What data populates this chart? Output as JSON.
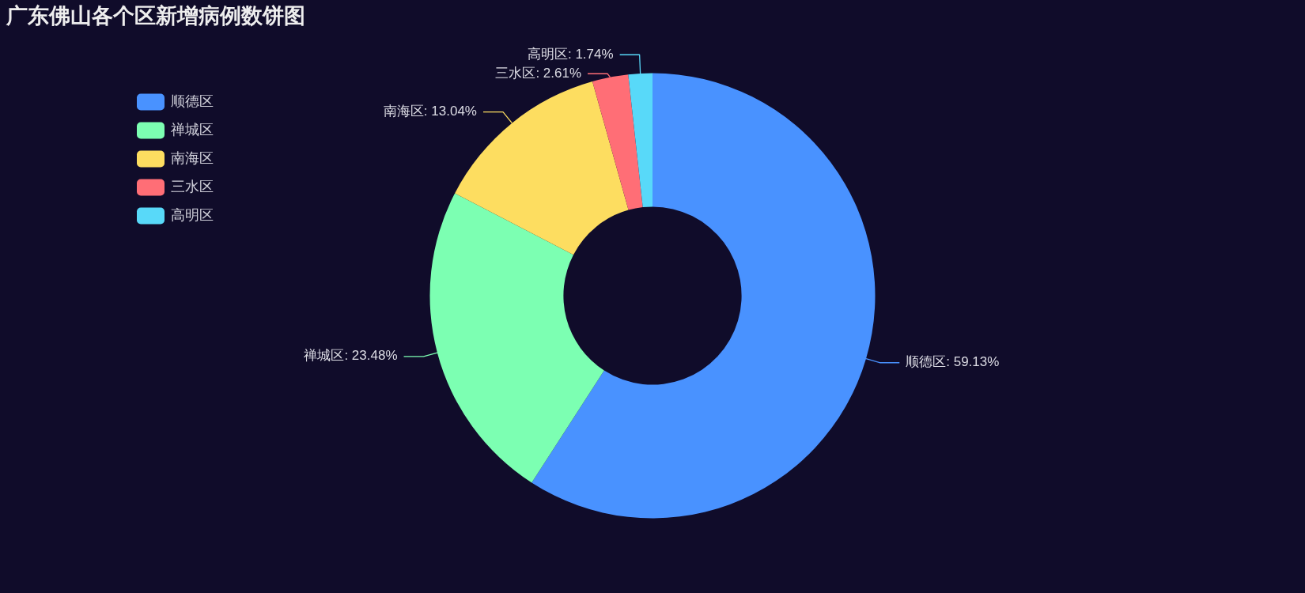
{
  "chart_data": {
    "type": "donut",
    "title": "广东佛山各个区新增病例数饼图",
    "categories": [
      "顺德区",
      "禅城区",
      "南海区",
      "三水区",
      "高明区"
    ],
    "values": [
      59.13,
      23.48,
      13.04,
      2.61,
      1.74
    ],
    "colors": [
      "#4992ff",
      "#7cffb2",
      "#fddd60",
      "#ff6e76",
      "#58d9f9"
    ],
    "value_labels": [
      "顺德区: 59.13%",
      "禅城区: 23.48%",
      "南海区: 13.04%",
      "三水区: 2.61%",
      "高明区: 1.74%"
    ],
    "legend": "top left"
  }
}
